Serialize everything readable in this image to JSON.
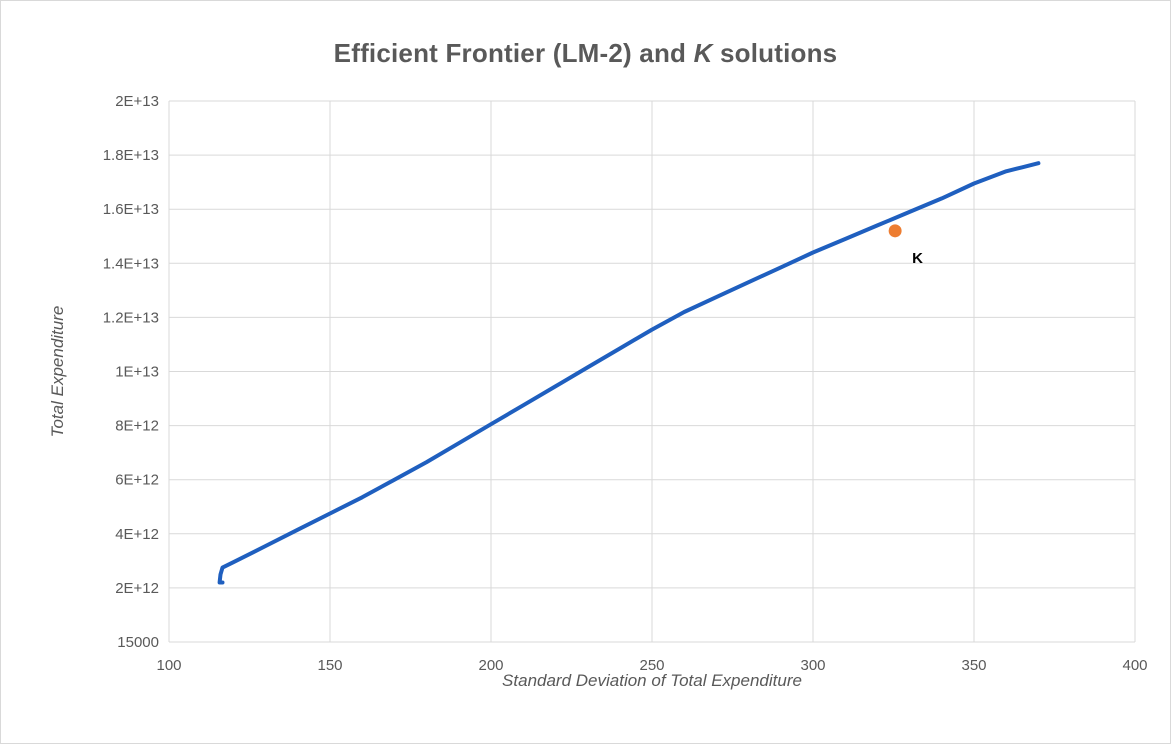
{
  "chart_data": {
    "type": "scatter",
    "title_main": "Efficient Frontier (LM-2) and ",
    "title_italic": "K",
    "title_tail": " solutions",
    "xlabel": "Standard Deviation of Total Expenditure",
    "ylabel": "Total Expenditure",
    "xlim": [
      100,
      400
    ],
    "ylim": [
      0,
      20
    ],
    "x_ticks": [
      100,
      150,
      200,
      250,
      300,
      350,
      400
    ],
    "x_tick_labels": [
      "100",
      "150",
      "200",
      "250",
      "300",
      "350",
      "400"
    ],
    "y_ticks": [
      0,
      2,
      4,
      6,
      8,
      10,
      12,
      14,
      16,
      18,
      20
    ],
    "y_tick_labels": [
      "15000",
      "2E+12",
      "4E+12",
      "6E+12",
      "8E+12",
      "1E+13",
      "1.2E+13",
      "1.4E+13",
      "1.6E+13",
      "1.8E+13",
      "2E+13"
    ],
    "grid": true,
    "series": [
      {
        "style": "line",
        "color": "#1f5fbf",
        "points": [
          [
            116.6,
            2.2
          ],
          [
            115.7,
            2.2
          ],
          [
            116.0,
            2.5
          ],
          [
            116.6,
            2.75
          ],
          [
            120,
            2.95
          ],
          [
            130,
            3.55
          ],
          [
            140,
            4.15
          ],
          [
            150,
            4.75
          ],
          [
            160,
            5.35
          ],
          [
            170,
            6.0
          ],
          [
            180,
            6.65
          ],
          [
            190,
            7.35
          ],
          [
            200,
            8.05
          ],
          [
            210,
            8.75
          ],
          [
            220,
            9.45
          ],
          [
            230,
            10.15
          ],
          [
            240,
            10.85
          ],
          [
            250,
            11.55
          ],
          [
            260,
            12.2
          ],
          [
            270,
            12.75
          ],
          [
            280,
            13.3
          ],
          [
            290,
            13.85
          ],
          [
            300,
            14.4
          ],
          [
            310,
            14.9
          ],
          [
            320,
            15.4
          ],
          [
            330,
            15.9
          ],
          [
            340,
            16.4
          ],
          [
            350,
            16.95
          ],
          [
            360,
            17.4
          ],
          [
            365,
            17.55
          ],
          [
            370,
            17.7
          ]
        ]
      },
      {
        "style": "marker",
        "color": "#ed7d31",
        "points": [
          [
            325.5,
            15.2
          ]
        ],
        "point_label": "K"
      }
    ]
  }
}
